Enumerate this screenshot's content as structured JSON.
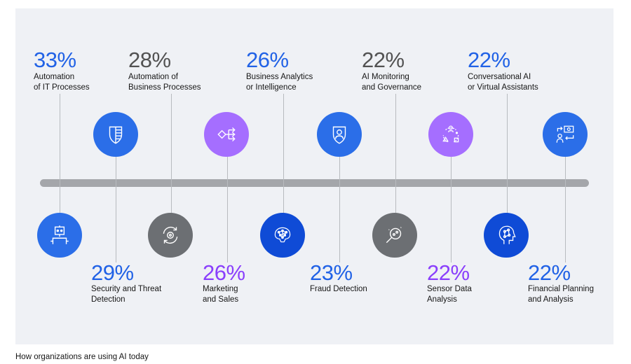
{
  "caption": "How organizations are using AI today",
  "colors": {
    "blue": "#2b6ee8",
    "dark_blue": "#0f4bd6",
    "purple": "#a56eff",
    "gray": "#6c6f73",
    "pct_blue": "#2162e6",
    "pct_gray": "#525252",
    "pct_purple": "#8a3ffc"
  },
  "items": [
    {
      "pct": "33%",
      "label1": "Automation",
      "label2": "of IT Processes",
      "icon": "robot-icon",
      "color": "blue",
      "pct_color": "pct_blue"
    },
    {
      "pct": "29%",
      "label1": "Security and Threat",
      "label2": "Detection",
      "icon": "shield-icon",
      "color": "blue",
      "pct_color": "pct_blue"
    },
    {
      "pct": "28%",
      "label1": "Automation of",
      "label2": "Business Processes",
      "icon": "gear-cycle-icon",
      "color": "gray",
      "pct_color": "pct_gray"
    },
    {
      "pct": "26%",
      "label1": "Marketing",
      "label2": "and Sales",
      "icon": "decision-flow-icon",
      "color": "purple",
      "pct_color": "pct_purple"
    },
    {
      "pct": "26%",
      "label1": "Business Analytics",
      "label2": "or Intelligence",
      "icon": "brain-network-icon",
      "color": "dark_blue",
      "pct_color": "pct_blue"
    },
    {
      "pct": "23%",
      "label1": "Fraud Detection",
      "label2": "",
      "icon": "shield-user-icon",
      "color": "blue",
      "pct_color": "pct_blue"
    },
    {
      "pct": "22%",
      "label1": "AI Monitoring",
      "label2": "and Governance",
      "icon": "magnifier-icon",
      "color": "gray",
      "pct_color": "pct_gray"
    },
    {
      "pct": "22%",
      "label1": "Sensor Data",
      "label2": "Analysis",
      "icon": "sensor-cycle-icon",
      "color": "purple",
      "pct_color": "pct_purple"
    },
    {
      "pct": "22%",
      "label1": "Conversational AI",
      "label2": "or Virtual Assistants",
      "icon": "head-circuit-icon",
      "color": "dark_blue",
      "pct_color": "pct_blue"
    },
    {
      "pct": "22%",
      "label1": "Financial Planning",
      "label2": "and Analysis",
      "icon": "money-transfer-icon",
      "color": "blue",
      "pct_color": "pct_blue"
    }
  ]
}
